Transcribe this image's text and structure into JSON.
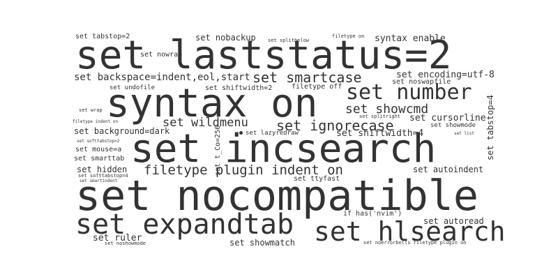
{
  "word_cloud": {
    "text_color": "#333333",
    "background_color": "#ffffff",
    "words": [
      {
        "id": "set-laststatus",
        "text": "set laststatus=2"
      },
      {
        "id": "syntax-on",
        "text": "syntax on"
      },
      {
        "id": "set-incsearch",
        "text": "set incsearch"
      },
      {
        "id": "set-nocompatible",
        "text": "set nocompatible"
      },
      {
        "id": "set-expandtab",
        "text": "set expandtab"
      },
      {
        "id": "set-hlsearch",
        "text": "set hlsearch"
      },
      {
        "id": "set-number",
        "text": "set number"
      },
      {
        "id": "set-smartcase",
        "text": "set smartcase"
      },
      {
        "id": "set-showcmd",
        "text": "set showcmd"
      },
      {
        "id": "set-wildmenu",
        "text": "set wildmenu"
      },
      {
        "id": "set-ignorecase",
        "text": "set ignorecase"
      },
      {
        "id": "filetype-plugin-indent-on",
        "text": "filetype plugin indent on"
      },
      {
        "id": "set-backspace",
        "text": "set backspace=indent,eol,start"
      },
      {
        "id": "set-encoding",
        "text": "set encoding=utf-8"
      },
      {
        "id": "set-nobackup",
        "text": "set nobackup"
      },
      {
        "id": "syntax-enable",
        "text": "syntax enable"
      },
      {
        "id": "set-tabstop-2",
        "text": "set tabstop=2"
      },
      {
        "id": "set-nowrap",
        "text": "set nowrap"
      },
      {
        "id": "set-splitbelow",
        "text": "set splitbelow"
      },
      {
        "id": "filetype-on",
        "text": "filetype on"
      },
      {
        "id": "set-noswapfile",
        "text": "set noswapfile"
      },
      {
        "id": "set-undofile",
        "text": "set undofile"
      },
      {
        "id": "set-shiftwidth-2",
        "text": "set shiftwidth=2"
      },
      {
        "id": "filetype-off",
        "text": "filetype off"
      },
      {
        "id": "set-wrap",
        "text": "set wrap"
      },
      {
        "id": "set-splitright",
        "text": "set splitright"
      },
      {
        "id": "set-cursorline",
        "text": "set cursorline"
      },
      {
        "id": "set-showmode",
        "text": "set showmode"
      },
      {
        "id": "filetype-indent-on",
        "text": "filetype indent on"
      },
      {
        "id": "set-background",
        "text": "set background=dark"
      },
      {
        "id": "set-lazyredraw",
        "text": "set lazyredraw"
      },
      {
        "id": "set-shiftwidth-4",
        "text": "set shiftwidth=4"
      },
      {
        "id": "set-list",
        "text": "set list"
      },
      {
        "id": "set-softtabstop-2",
        "text": "set softtabstop=2"
      },
      {
        "id": "set-mouse",
        "text": "set mouse=a"
      },
      {
        "id": "set-smarttab",
        "text": "set smarttab"
      },
      {
        "id": "set-hidden",
        "text": "set hidden"
      },
      {
        "id": "set-t-co",
        "text": "set t_Co=256"
      },
      {
        "id": "set-autoindent",
        "text": "set autoindent"
      },
      {
        "id": "set-softtabstop-4",
        "text": "set softtabstop=4"
      },
      {
        "id": "set-smartindent",
        "text": "set smartindent"
      },
      {
        "id": "set-ttyfast",
        "text": "set ttyfast"
      },
      {
        "id": "if-has-nvim",
        "text": "if has('nvim')"
      },
      {
        "id": "set-autoread",
        "text": "set autoread"
      },
      {
        "id": "set-ruler",
        "text": "set ruler"
      },
      {
        "id": "set-noshowmode",
        "text": "set noshowmode"
      },
      {
        "id": "set-showmatch",
        "text": "set showmatch"
      },
      {
        "id": "set-noerrorbells",
        "text": "set noerrorbells filetype plugin on"
      },
      {
        "id": "set-tabstop-4",
        "text": "set tabstop=4"
      }
    ]
  }
}
